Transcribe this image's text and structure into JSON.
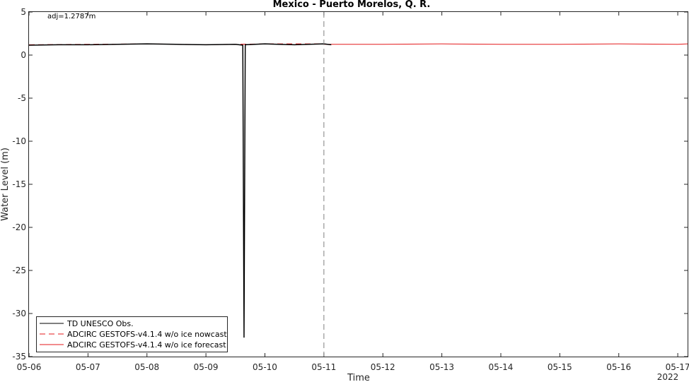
{
  "chart_data": {
    "type": "line",
    "title": "Mexico - Puerto Morelos, Q. R.",
    "xlabel": "Time",
    "ylabel": "Water Level (m)",
    "annotation": "adj=1.2787m",
    "year_label": "2022",
    "xlim": [
      "05-06",
      "05-17 04:00"
    ],
    "ylim": [
      -35,
      5
    ],
    "x_ticks": [
      "05-06",
      "05-07",
      "05-08",
      "05-09",
      "05-10",
      "05-11",
      "05-12",
      "05-13",
      "05-14",
      "05-15",
      "05-16",
      "05-17"
    ],
    "y_ticks": [
      5,
      0,
      -5,
      -10,
      -15,
      -20,
      -25,
      -30,
      -35
    ],
    "grid": false,
    "legend_position": "bottom-left",
    "forecast_start": "05-11",
    "series": [
      {
        "name": "TD UNESCO Obs.",
        "color": "#000000",
        "style": "solid",
        "x": [
          "05-06 00:00",
          "05-06 12:00",
          "05-07 00:00",
          "05-07 12:00",
          "05-08 00:00",
          "05-08 12:00",
          "05-09 00:00",
          "05-09 12:00",
          "05-09 15:00",
          "05-09 15:30",
          "05-09 16:00",
          "05-10 00:00",
          "05-10 12:00",
          "05-11 00:00",
          "05-11 03:00"
        ],
        "y": [
          1.15,
          1.2,
          1.2,
          1.25,
          1.3,
          1.25,
          1.2,
          1.25,
          1.15,
          -32.8,
          1.2,
          1.3,
          1.2,
          1.3,
          1.2
        ]
      },
      {
        "name": "ADCIRC GESTOFS-v4.1.4 w/o ice nowcast",
        "color": "#e41a1c",
        "style": "dashed",
        "x": [
          "05-06 00:00",
          "05-07 00:00",
          "05-08 00:00",
          "05-09 00:00",
          "05-10 00:00",
          "05-11 00:00"
        ],
        "y": [
          1.2,
          1.25,
          1.3,
          1.2,
          1.3,
          1.3
        ]
      },
      {
        "name": "ADCIRC GESTOFS-v4.1.4 w/o ice forecast",
        "color": "#e41a1c",
        "style": "solid",
        "x": [
          "05-11 00:00",
          "05-12 00:00",
          "05-13 00:00",
          "05-14 00:00",
          "05-15 00:00",
          "05-16 00:00",
          "05-17 00:00",
          "05-17 04:00"
        ],
        "y": [
          1.25,
          1.25,
          1.3,
          1.25,
          1.25,
          1.3,
          1.25,
          1.3
        ]
      }
    ]
  }
}
